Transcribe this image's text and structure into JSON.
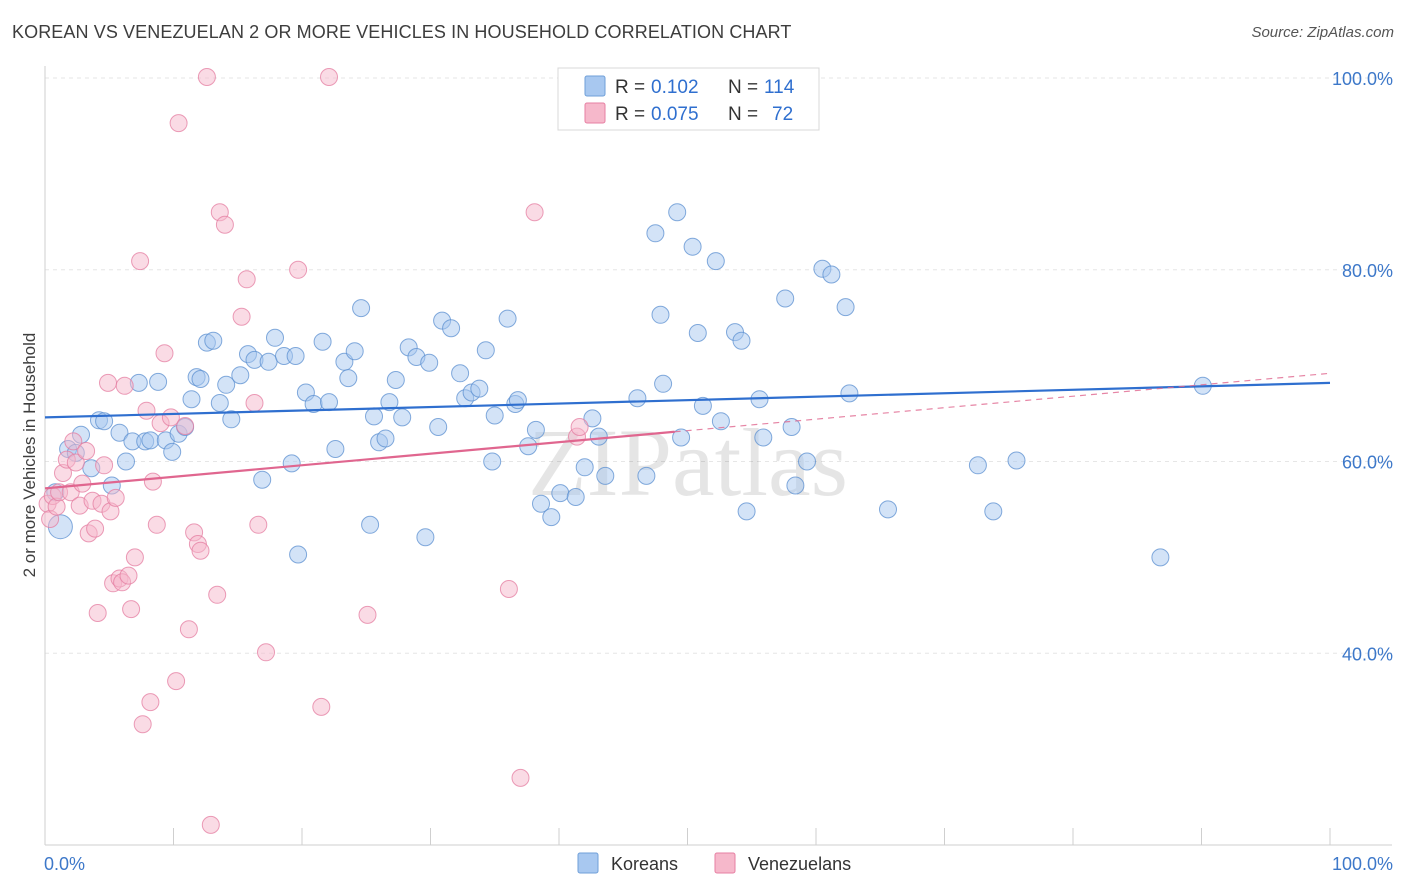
{
  "title": "KOREAN VS VENEZUELAN 2 OR MORE VEHICLES IN HOUSEHOLD CORRELATION CHART",
  "source": "Source: ZipAtlas.com",
  "watermark": "ZIPatlas",
  "legend_top": [
    {
      "r_label": "R =",
      "r_value": "0.102",
      "n_label": "N =",
      "n_value": "114",
      "color": "#a8c8f0",
      "edge": "#6f9fd8"
    },
    {
      "r_label": "R =",
      "r_value": "0.075",
      "n_label": "N =",
      "n_value": "72",
      "color": "#f6b8cb",
      "edge": "#e77fa3"
    }
  ],
  "colors": {
    "blue_fill": "#a8c8f0",
    "blue_edge": "#5b8fd0",
    "blue_line": "#2f6fcf",
    "pink_fill": "#f6b8cb",
    "pink_edge": "#e47ca0",
    "pink_line": "#e0668f",
    "tick_text": "#3d78c9",
    "grid": "#e6e6e6"
  },
  "chart_data": {
    "type": "scatter",
    "title": "KOREAN VS VENEZUELAN 2 OR MORE VEHICLES IN HOUSEHOLD CORRELATION CHART",
    "xlabel": "",
    "ylabel": "2 or more Vehicles in Household",
    "xlim": [
      0,
      100
    ],
    "ylim": [
      20,
      100
    ],
    "x_tick_labels": [
      "0.0%",
      "100.0%"
    ],
    "y_ticks": [
      40,
      60,
      80,
      100
    ],
    "y_tick_labels": [
      "40.0%",
      "60.0%",
      "80.0%",
      "100.0%"
    ],
    "grid": true,
    "legend_position": "bottom-center",
    "series": [
      {
        "name": "Koreans",
        "color": "#a8c8f0",
        "trend": {
          "x": [
            0,
            100
          ],
          "y": [
            64.6,
            68.2
          ]
        },
        "points": [
          [
            0.8,
            56.8
          ],
          [
            1.2,
            53.2
          ],
          [
            1.8,
            61.3
          ],
          [
            2.4,
            60.9
          ],
          [
            2.8,
            62.8
          ],
          [
            3.6,
            59.3
          ],
          [
            4.2,
            64.3
          ],
          [
            4.6,
            64.2
          ],
          [
            5.2,
            57.5
          ],
          [
            5.8,
            63.0
          ],
          [
            6.3,
            60.0
          ],
          [
            6.8,
            62.1
          ],
          [
            7.3,
            68.2
          ],
          [
            7.8,
            62.1
          ],
          [
            8.2,
            62.2
          ],
          [
            8.8,
            68.3
          ],
          [
            9.4,
            62.2
          ],
          [
            9.9,
            61.0
          ],
          [
            10.4,
            62.9
          ],
          [
            10.9,
            63.6
          ],
          [
            11.4,
            66.5
          ],
          [
            11.8,
            68.8
          ],
          [
            12.1,
            68.6
          ],
          [
            12.6,
            72.4
          ],
          [
            13.1,
            72.6
          ],
          [
            13.6,
            66.1
          ],
          [
            14.1,
            68.0
          ],
          [
            14.5,
            64.4
          ],
          [
            15.2,
            69.0
          ],
          [
            15.8,
            71.2
          ],
          [
            16.3,
            70.6
          ],
          [
            16.9,
            58.1
          ],
          [
            17.4,
            70.4
          ],
          [
            17.9,
            72.9
          ],
          [
            18.6,
            71.0
          ],
          [
            19.2,
            59.8
          ],
          [
            19.5,
            71.0
          ],
          [
            19.7,
            50.3
          ],
          [
            20.3,
            67.2
          ],
          [
            20.9,
            66.0
          ],
          [
            21.6,
            72.5
          ],
          [
            22.1,
            66.2
          ],
          [
            22.6,
            61.3
          ],
          [
            23.3,
            70.4
          ],
          [
            23.6,
            68.7
          ],
          [
            24.1,
            71.5
          ],
          [
            24.6,
            76.0
          ],
          [
            25.3,
            53.4
          ],
          [
            25.6,
            64.7
          ],
          [
            26.0,
            62.0
          ],
          [
            26.5,
            62.4
          ],
          [
            26.8,
            66.2
          ],
          [
            27.3,
            68.5
          ],
          [
            27.8,
            64.6
          ],
          [
            28.3,
            71.9
          ],
          [
            28.9,
            70.9
          ],
          [
            29.6,
            52.1
          ],
          [
            29.9,
            70.3
          ],
          [
            30.6,
            63.6
          ],
          [
            30.9,
            74.7
          ],
          [
            31.6,
            73.9
          ],
          [
            32.3,
            69.2
          ],
          [
            32.7,
            66.6
          ],
          [
            33.2,
            67.2
          ],
          [
            33.8,
            67.6
          ],
          [
            34.3,
            71.6
          ],
          [
            34.8,
            60.0
          ],
          [
            35.0,
            64.8
          ],
          [
            36.0,
            74.9
          ],
          [
            36.6,
            66.0
          ],
          [
            36.8,
            66.4
          ],
          [
            37.6,
            61.6
          ],
          [
            38.2,
            63.3
          ],
          [
            38.6,
            55.6
          ],
          [
            39.4,
            54.2
          ],
          [
            40.1,
            56.7
          ],
          [
            41.3,
            56.3
          ],
          [
            42.0,
            59.4
          ],
          [
            42.6,
            64.5
          ],
          [
            43.1,
            62.6
          ],
          [
            43.6,
            58.5
          ],
          [
            46.1,
            66.6
          ],
          [
            46.8,
            58.5
          ],
          [
            47.5,
            83.8
          ],
          [
            47.9,
            75.3
          ],
          [
            48.1,
            68.1
          ],
          [
            49.2,
            86.0
          ],
          [
            49.5,
            62.5
          ],
          [
            50.4,
            82.4
          ],
          [
            50.8,
            73.4
          ],
          [
            51.2,
            65.8
          ],
          [
            52.2,
            80.9
          ],
          [
            52.6,
            64.2
          ],
          [
            53.7,
            73.5
          ],
          [
            54.2,
            72.6
          ],
          [
            54.6,
            54.8
          ],
          [
            55.6,
            66.5
          ],
          [
            55.9,
            62.5
          ],
          [
            57.6,
            77.0
          ],
          [
            58.1,
            63.6
          ],
          [
            58.4,
            57.5
          ],
          [
            59.3,
            60.0
          ],
          [
            60.5,
            80.1
          ],
          [
            61.2,
            79.5
          ],
          [
            62.3,
            76.1
          ],
          [
            62.6,
            67.1
          ],
          [
            65.6,
            55.0
          ],
          [
            72.6,
            59.6
          ],
          [
            73.8,
            54.8
          ],
          [
            75.6,
            60.1
          ],
          [
            86.8,
            50.0
          ],
          [
            90.1,
            67.9
          ]
        ]
      },
      {
        "name": "Venezuelans",
        "color": "#f6b8cb",
        "trend": {
          "x": [
            0,
            49
          ],
          "y": [
            57.2,
            63.1
          ]
        },
        "trend_dashed": {
          "x": [
            49,
            100
          ],
          "y": [
            63.1,
            69.2
          ]
        },
        "points": [
          [
            0.2,
            55.6
          ],
          [
            0.4,
            54.0
          ],
          [
            0.6,
            56.4
          ],
          [
            0.9,
            55.3
          ],
          [
            1.1,
            56.8
          ],
          [
            1.4,
            58.8
          ],
          [
            1.7,
            60.2
          ],
          [
            2.0,
            56.8
          ],
          [
            2.2,
            62.1
          ],
          [
            2.4,
            59.9
          ],
          [
            2.7,
            55.4
          ],
          [
            2.9,
            57.7
          ],
          [
            3.2,
            61.1
          ],
          [
            3.4,
            52.5
          ],
          [
            3.7,
            55.9
          ],
          [
            3.9,
            53.0
          ],
          [
            4.1,
            44.2
          ],
          [
            4.4,
            55.6
          ],
          [
            4.6,
            59.6
          ],
          [
            4.9,
            68.2
          ],
          [
            5.1,
            54.8
          ],
          [
            5.3,
            47.3
          ],
          [
            5.5,
            56.2
          ],
          [
            5.8,
            47.8
          ],
          [
            6.0,
            47.4
          ],
          [
            6.2,
            67.9
          ],
          [
            6.5,
            48.1
          ],
          [
            6.7,
            44.6
          ],
          [
            7.0,
            50.0
          ],
          [
            7.4,
            80.9
          ],
          [
            7.6,
            32.6
          ],
          [
            7.9,
            65.3
          ],
          [
            8.2,
            34.9
          ],
          [
            8.4,
            57.9
          ],
          [
            8.7,
            53.4
          ],
          [
            9.0,
            64.0
          ],
          [
            9.3,
            71.3
          ],
          [
            9.8,
            64.6
          ],
          [
            10.2,
            37.1
          ],
          [
            10.4,
            95.3
          ],
          [
            10.9,
            63.7
          ],
          [
            11.2,
            42.5
          ],
          [
            11.6,
            52.6
          ],
          [
            11.9,
            51.4
          ],
          [
            12.1,
            50.7
          ],
          [
            12.6,
            100.1
          ],
          [
            12.9,
            22.1
          ],
          [
            13.4,
            46.1
          ],
          [
            13.6,
            86.0
          ],
          [
            14.0,
            84.7
          ],
          [
            15.3,
            75.1
          ],
          [
            15.7,
            79.0
          ],
          [
            16.3,
            66.1
          ],
          [
            16.6,
            53.4
          ],
          [
            17.2,
            40.1
          ],
          [
            19.7,
            80.0
          ],
          [
            21.5,
            34.4
          ],
          [
            22.1,
            100.1
          ],
          [
            25.1,
            44.0
          ],
          [
            36.1,
            46.7
          ],
          [
            37.0,
            27.0
          ],
          [
            38.1,
            86.0
          ],
          [
            41.4,
            62.6
          ],
          [
            41.6,
            63.6
          ]
        ]
      }
    ]
  },
  "bottom_legend": [
    {
      "label": "Koreans",
      "color": "#a8c8f0",
      "edge": "#6f9fd8"
    },
    {
      "label": "Venezuelans",
      "color": "#f6b8cb",
      "edge": "#e77fa3"
    }
  ]
}
